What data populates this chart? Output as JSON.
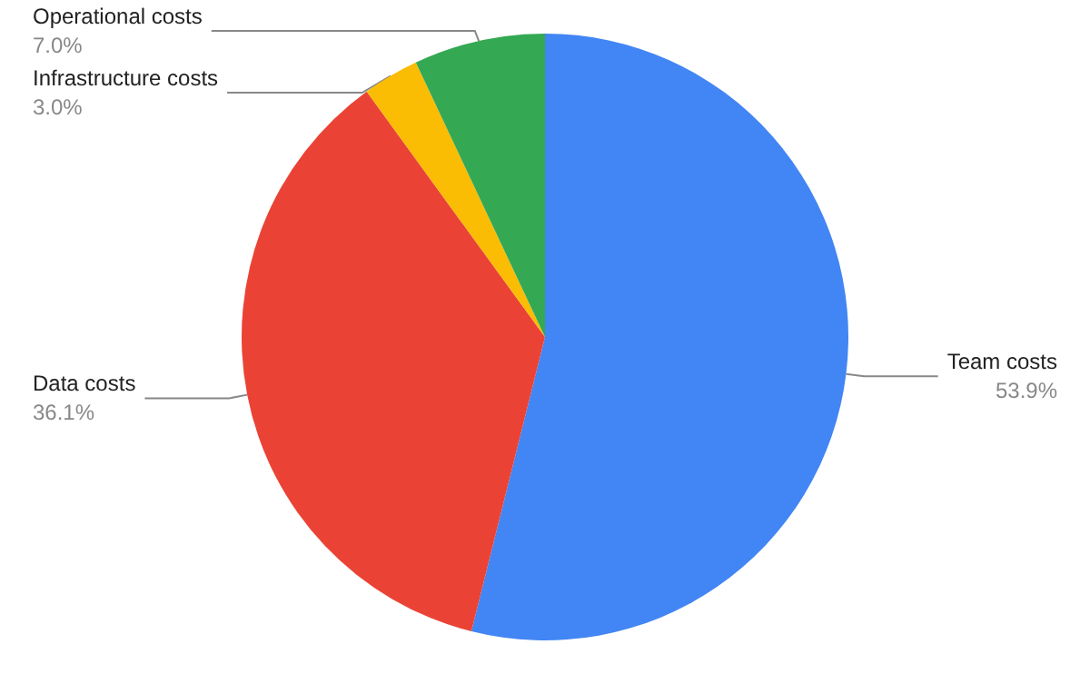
{
  "chart_data": {
    "type": "pie",
    "categories": [
      "Team costs",
      "Data costs",
      "Infrastructure costs",
      "Operational costs"
    ],
    "values": [
      53.9,
      36.1,
      3.0,
      7.0
    ],
    "value_labels": [
      "53.9%",
      "36.1%",
      "3.0%",
      "7.0%"
    ],
    "colors": [
      "#4285f4",
      "#ea4335",
      "#fbbc04",
      "#34a853"
    ],
    "legend": false
  }
}
